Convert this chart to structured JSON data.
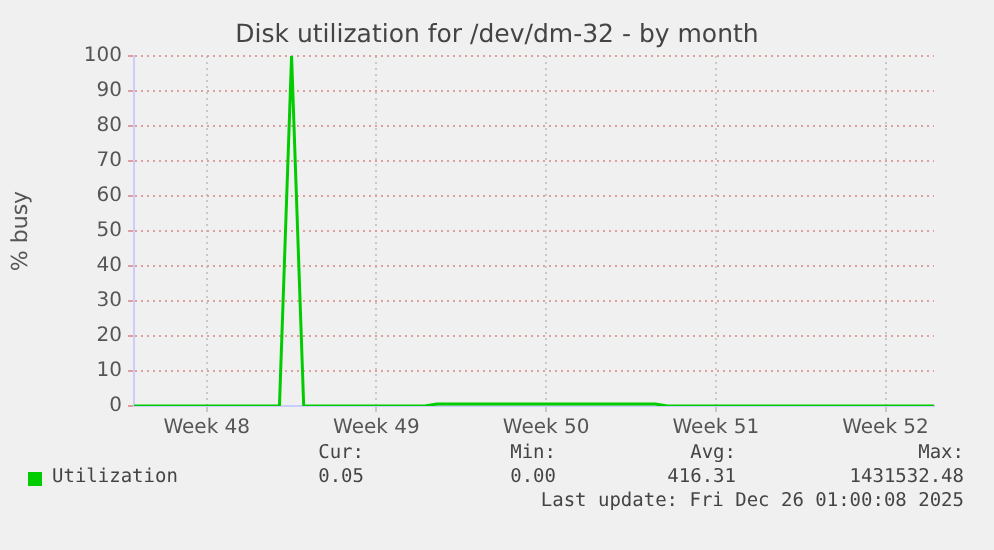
{
  "chart_data": {
    "type": "line",
    "title": "Disk utilization for /dev/dm-32 - by month",
    "ylabel": "% busy",
    "categories": [
      null,
      null,
      null,
      null,
      null,
      null,
      "Week 48",
      null,
      null,
      null,
      null,
      null,
      null,
      null,
      null,
      null,
      null,
      null,
      null,
      null,
      "Week 49",
      null,
      null,
      null,
      null,
      null,
      null,
      null,
      null,
      null,
      null,
      null,
      null,
      null,
      "Week 50",
      null,
      null,
      null,
      null,
      null,
      null,
      null,
      null,
      null,
      null,
      null,
      null,
      null,
      "Week 51",
      null,
      null,
      null,
      null,
      null,
      null,
      null,
      null,
      null,
      null,
      null,
      null,
      null,
      "Week 52",
      null,
      null,
      null,
      null
    ],
    "series": [
      {
        "name": "Utilization",
        "color": "#00cc00",
        "values": [
          0,
          0,
          0,
          0,
          0,
          0,
          0,
          0,
          0,
          0,
          0,
          0,
          0,
          100,
          0,
          0,
          0,
          0,
          0,
          0,
          0,
          0,
          0,
          0,
          0,
          0.6,
          0.6,
          0.6,
          0.6,
          0.6,
          0.6,
          0.6,
          0.6,
          0.6,
          0.6,
          0.6,
          0.6,
          0.6,
          0.6,
          0.6,
          0.6,
          0.6,
          0.6,
          0.6,
          0,
          0,
          0,
          0,
          0,
          0,
          0,
          0,
          0,
          0,
          0,
          0,
          0,
          0,
          0,
          0,
          0,
          0,
          0,
          0,
          0,
          0,
          0
        ]
      }
    ],
    "ylim": [
      0,
      100
    ],
    "yticks": [
      0,
      10,
      20,
      30,
      40,
      50,
      60,
      70,
      80,
      90,
      100
    ],
    "grid": true,
    "legend": "bottom left",
    "marker": "none",
    "line_style": "solid",
    "annotations": [
      "Cur:",
      "Min:",
      "Avg:",
      "Max:",
      "0.05",
      "0.00",
      "416.31",
      "1431532.48",
      "Last update: Fri Dec 26 01:00:08 2025"
    ]
  }
}
